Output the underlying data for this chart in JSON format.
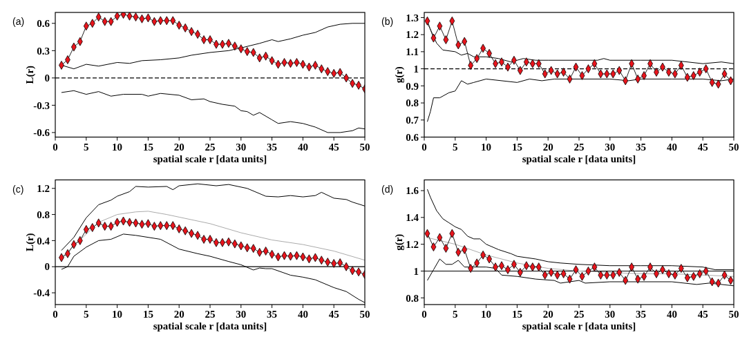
{
  "chart_data": [
    {
      "type": "line",
      "ylabel": "L(r)",
      "xlabel": "spatial scale r [data units]",
      "annotations": [
        "(a)"
      ],
      "xlim": [
        0,
        50
      ],
      "xticks": [
        0,
        5,
        10,
        15,
        20,
        25,
        30,
        35,
        40,
        45,
        50
      ],
      "ylim": [
        -0.65,
        0.72
      ],
      "yticks": [
        -0.6,
        -0.3,
        0,
        0.3,
        0.6
      ],
      "grid": false,
      "ref_lines": [
        {
          "axis": "y",
          "value": 0,
          "color": "#000000",
          "line_style": "dashed"
        }
      ],
      "series": [
        {
          "color": "#000000",
          "marker": "none",
          "x": [
            1,
            3,
            5,
            7,
            10,
            12,
            14,
            17,
            20,
            22,
            25,
            28,
            30,
            33,
            35,
            36,
            38,
            40,
            42,
            44,
            46,
            48,
            50
          ],
          "values": [
            0.14,
            0.1,
            0.15,
            0.13,
            0.17,
            0.16,
            0.19,
            0.2,
            0.22,
            0.25,
            0.28,
            0.3,
            0.33,
            0.38,
            0.42,
            0.4,
            0.43,
            0.47,
            0.5,
            0.56,
            0.59,
            0.6,
            0.6
          ]
        },
        {
          "color": "#000000",
          "marker": "none",
          "x": [
            1,
            3,
            5,
            7,
            9,
            11,
            14,
            15,
            17,
            20,
            22,
            24,
            25,
            27,
            29,
            30,
            31,
            32,
            33,
            35,
            36,
            38,
            40,
            42,
            44,
            46,
            48,
            49,
            50
          ],
          "values": [
            -0.16,
            -0.14,
            -0.18,
            -0.15,
            -0.2,
            -0.18,
            -0.18,
            -0.2,
            -0.17,
            -0.19,
            -0.24,
            -0.23,
            -0.26,
            -0.29,
            -0.31,
            -0.36,
            -0.37,
            -0.41,
            -0.38,
            -0.46,
            -0.5,
            -0.48,
            -0.5,
            -0.54,
            -0.6,
            -0.6,
            -0.58,
            -0.55,
            -0.56
          ]
        },
        {
          "color": "#e8141c",
          "marker": "diamond",
          "x": [
            1,
            2,
            3,
            4,
            5,
            6,
            7,
            8,
            9,
            10,
            11,
            12,
            13,
            14,
            15,
            16,
            17,
            18,
            19,
            20,
            21,
            22,
            23,
            24,
            25,
            26,
            27,
            28,
            29,
            30,
            31,
            32,
            33,
            34,
            35,
            36,
            37,
            38,
            39,
            40,
            41,
            42,
            43,
            44,
            45,
            46,
            47,
            48,
            49,
            50
          ],
          "values": [
            0.14,
            0.2,
            0.34,
            0.4,
            0.57,
            0.6,
            0.67,
            0.62,
            0.62,
            0.68,
            0.7,
            0.68,
            0.67,
            0.65,
            0.66,
            0.62,
            0.63,
            0.63,
            0.63,
            0.58,
            0.55,
            0.51,
            0.48,
            0.42,
            0.42,
            0.37,
            0.37,
            0.38,
            0.35,
            0.32,
            0.29,
            0.28,
            0.22,
            0.24,
            0.19,
            0.15,
            0.17,
            0.16,
            0.17,
            0.15,
            0.12,
            0.14,
            0.1,
            0.07,
            0.05,
            0.06,
            0.0,
            -0.06,
            -0.08,
            -0.12
          ]
        }
      ]
    },
    {
      "type": "line",
      "ylabel": "g(r)",
      "xlabel": "spatial scale r [data units]",
      "annotations": [
        "(b)"
      ],
      "xlim": [
        0,
        50
      ],
      "xticks": [
        0,
        5,
        10,
        15,
        20,
        25,
        30,
        35,
        40,
        45,
        50
      ],
      "ylim": [
        0.6,
        1.33
      ],
      "yticks": [
        0.6,
        0.7,
        0.8,
        0.9,
        1,
        1.1,
        1.2,
        1.3
      ],
      "grid": false,
      "ref_lines": [
        {
          "axis": "y",
          "value": 1,
          "color": "#000000",
          "line_style": "dashed"
        }
      ],
      "series": [
        {
          "color": "#000000",
          "marker": "none",
          "x": [
            0.5,
            2,
            3,
            5,
            6,
            7,
            8,
            10,
            12,
            14,
            16,
            18,
            20,
            25,
            28,
            29,
            30,
            35,
            40,
            45,
            48,
            50
          ],
          "values": [
            1.27,
            1.15,
            1.11,
            1.1,
            1.08,
            1.09,
            1.07,
            1.07,
            1.06,
            1.04,
            1.06,
            1.05,
            1.05,
            1.05,
            1.05,
            1.06,
            1.05,
            1.05,
            1.05,
            1.03,
            1.04,
            1.03
          ]
        },
        {
          "color": "#000000",
          "marker": "none",
          "x": [
            0.5,
            1,
            1.5,
            2.5,
            4,
            5,
            6,
            7,
            8,
            10,
            15,
            17,
            19,
            21,
            25,
            30,
            33,
            35,
            40,
            45,
            48,
            50
          ],
          "values": [
            0.69,
            0.75,
            0.83,
            0.83,
            0.86,
            0.87,
            0.93,
            0.91,
            0.92,
            0.94,
            0.92,
            0.94,
            0.93,
            0.94,
            0.94,
            0.94,
            0.93,
            0.94,
            0.94,
            0.94,
            0.93,
            0.94
          ]
        },
        {
          "color": "#e8141c",
          "marker": "diamond",
          "x": [
            0.5,
            1.5,
            2.5,
            3.5,
            4.5,
            5.5,
            6.5,
            7.5,
            8.5,
            9.5,
            10.5,
            11.5,
            12.5,
            13.5,
            14.5,
            15.5,
            16.5,
            17.5,
            18.5,
            19.5,
            20.5,
            21.5,
            22.5,
            23.5,
            24.5,
            25.5,
            26.5,
            27.5,
            28.5,
            29.5,
            30.5,
            31.5,
            32.5,
            33.5,
            34.5,
            35.5,
            36.5,
            37.5,
            38.5,
            39.5,
            40.5,
            41.5,
            42.5,
            43.5,
            44.5,
            45.5,
            46.5,
            47.5,
            48.5,
            49.5
          ],
          "values": [
            1.28,
            1.18,
            1.25,
            1.17,
            1.28,
            1.14,
            1.16,
            1.02,
            1.06,
            1.12,
            1.09,
            1.03,
            1.04,
            1.01,
            1.05,
            0.99,
            1.04,
            1.03,
            1.03,
            0.97,
            0.99,
            0.97,
            0.98,
            0.94,
            1.01,
            0.96,
            1.0,
            1.03,
            0.97,
            0.97,
            0.97,
            0.99,
            0.93,
            1.03,
            0.94,
            0.96,
            1.03,
            0.98,
            1.01,
            0.98,
            0.97,
            1.02,
            0.95,
            0.96,
            0.98,
            1.0,
            0.92,
            0.91,
            0.97,
            0.93
          ]
        }
      ]
    },
    {
      "type": "line",
      "ylabel": "L(r)",
      "xlabel": "spatial scale r [data units]",
      "annotations": [
        "(c)"
      ],
      "xlim": [
        0,
        50
      ],
      "xticks": [
        0,
        5,
        10,
        15,
        20,
        25,
        30,
        35,
        40,
        45,
        50
      ],
      "ylim": [
        -0.58,
        1.33
      ],
      "yticks": [
        -0.4,
        0,
        0.4,
        0.8,
        1.2
      ],
      "grid": false,
      "ref_lines": [
        {
          "axis": "y",
          "value": 0,
          "color": "#000000",
          "line_style": "solid"
        }
      ],
      "series": [
        {
          "color": "#000000",
          "marker": "none",
          "x": [
            1,
            3,
            5,
            7,
            9,
            10,
            12,
            13,
            15,
            18,
            19,
            20,
            23,
            26,
            28,
            31,
            34,
            36,
            38,
            40,
            42,
            43,
            45,
            47,
            48,
            50
          ],
          "values": [
            0.25,
            0.45,
            0.75,
            0.95,
            1.02,
            1.08,
            1.15,
            1.23,
            1.22,
            1.23,
            1.18,
            1.24,
            1.27,
            1.24,
            1.26,
            1.2,
            1.08,
            1.07,
            1.09,
            1.07,
            1.09,
            1.14,
            1.05,
            1.03,
            0.99,
            0.93
          ]
        },
        {
          "color": "#aaaaaa",
          "marker": "none",
          "x": [
            1,
            5,
            7,
            10,
            13,
            15,
            18,
            20,
            25,
            30,
            35,
            40,
            45,
            50
          ],
          "values": [
            0.14,
            0.5,
            0.68,
            0.8,
            0.84,
            0.85,
            0.8,
            0.76,
            0.66,
            0.52,
            0.41,
            0.34,
            0.24,
            0.1
          ]
        },
        {
          "color": "#000000",
          "marker": "none",
          "x": [
            1,
            2,
            3,
            5,
            7,
            9,
            11,
            13,
            17,
            20,
            23,
            25,
            28,
            30,
            32,
            33,
            34,
            35,
            38,
            40,
            42,
            45,
            47,
            49,
            50
          ],
          "values": [
            -0.04,
            0,
            0.16,
            0.3,
            0.4,
            0.42,
            0.5,
            0.48,
            0.42,
            0.27,
            0.2,
            0.16,
            0.08,
            0.03,
            -0.05,
            -0.02,
            -0.03,
            -0.03,
            -0.13,
            -0.16,
            -0.2,
            -0.32,
            -0.38,
            -0.5,
            -0.55
          ]
        },
        {
          "color": "#e8141c",
          "marker": "diamond",
          "x": [
            1,
            2,
            3,
            4,
            5,
            6,
            7,
            8,
            9,
            10,
            11,
            12,
            13,
            14,
            15,
            16,
            17,
            18,
            19,
            20,
            21,
            22,
            23,
            24,
            25,
            26,
            27,
            28,
            29,
            30,
            31,
            32,
            33,
            34,
            35,
            36,
            37,
            38,
            39,
            40,
            41,
            42,
            43,
            44,
            45,
            46,
            47,
            48,
            49,
            50
          ],
          "values": [
            0.14,
            0.2,
            0.34,
            0.4,
            0.57,
            0.6,
            0.67,
            0.62,
            0.62,
            0.68,
            0.7,
            0.68,
            0.67,
            0.65,
            0.66,
            0.62,
            0.63,
            0.63,
            0.63,
            0.58,
            0.55,
            0.51,
            0.48,
            0.42,
            0.42,
            0.37,
            0.37,
            0.38,
            0.35,
            0.32,
            0.29,
            0.28,
            0.22,
            0.24,
            0.19,
            0.15,
            0.17,
            0.16,
            0.17,
            0.15,
            0.12,
            0.14,
            0.1,
            0.07,
            0.05,
            0.06,
            0.0,
            -0.06,
            -0.08,
            -0.12
          ]
        }
      ]
    },
    {
      "type": "line",
      "ylabel": "g(r)",
      "xlabel": "spatial scale r [data units]",
      "annotations": [
        "(d)"
      ],
      "xlim": [
        0,
        50
      ],
      "xticks": [
        0,
        5,
        10,
        15,
        20,
        25,
        30,
        35,
        40,
        45,
        50
      ],
      "ylim": [
        0.75,
        1.68
      ],
      "yticks": [
        0.8,
        1,
        1.2,
        1.4,
        1.6
      ],
      "grid": false,
      "ref_lines": [
        {
          "axis": "y",
          "value": 1,
          "color": "#000000",
          "line_style": "solid"
        }
      ],
      "series": [
        {
          "color": "#000000",
          "marker": "none",
          "x": [
            0.5,
            1,
            2,
            3,
            4,
            5,
            6,
            7,
            8,
            9,
            10,
            12,
            14,
            15,
            18,
            20,
            22,
            25,
            30,
            35,
            40,
            45,
            47,
            50
          ],
          "values": [
            1.61,
            1.55,
            1.45,
            1.39,
            1.36,
            1.33,
            1.31,
            1.26,
            1.24,
            1.24,
            1.2,
            1.16,
            1.13,
            1.11,
            1.09,
            1.07,
            1.06,
            1.05,
            1.04,
            1.04,
            1.04,
            1.03,
            1.01,
            1.01
          ]
        },
        {
          "color": "#000000",
          "marker": "none",
          "x": [
            0.5,
            1.5,
            2.5,
            3.5,
            4.5,
            5.5,
            6.5,
            8,
            10,
            11.5,
            12.5,
            15,
            18,
            21,
            22,
            25,
            26,
            30,
            35,
            40,
            44,
            46,
            48,
            50
          ],
          "values": [
            0.93,
            1.01,
            1.09,
            1.05,
            1.05,
            1.08,
            1.03,
            1.03,
            1.03,
            1.02,
            0.97,
            0.96,
            0.94,
            0.93,
            0.91,
            0.93,
            0.91,
            0.92,
            0.92,
            0.92,
            0.9,
            0.91,
            0.9,
            0.89
          ]
        },
        {
          "color": "#aaaaaa",
          "marker": "none",
          "x": [
            0.5,
            5,
            10,
            15,
            20,
            25,
            30,
            35,
            40,
            45,
            50
          ],
          "values": [
            1.25,
            1.2,
            1.12,
            1.06,
            1.02,
            1.0,
            0.99,
            0.98,
            0.98,
            0.97,
            0.96
          ]
        },
        {
          "color": "#e8141c",
          "marker": "diamond",
          "x": [
            0.5,
            1.5,
            2.5,
            3.5,
            4.5,
            5.5,
            6.5,
            7.5,
            8.5,
            9.5,
            10.5,
            11.5,
            12.5,
            13.5,
            14.5,
            15.5,
            16.5,
            17.5,
            18.5,
            19.5,
            20.5,
            21.5,
            22.5,
            23.5,
            24.5,
            25.5,
            26.5,
            27.5,
            28.5,
            29.5,
            30.5,
            31.5,
            32.5,
            33.5,
            34.5,
            35.5,
            36.5,
            37.5,
            38.5,
            39.5,
            40.5,
            41.5,
            42.5,
            43.5,
            44.5,
            45.5,
            46.5,
            47.5,
            48.5,
            49.5
          ],
          "values": [
            1.28,
            1.18,
            1.25,
            1.17,
            1.28,
            1.14,
            1.16,
            1.02,
            1.06,
            1.12,
            1.09,
            1.03,
            1.04,
            1.01,
            1.05,
            0.99,
            1.04,
            1.03,
            1.03,
            0.97,
            0.99,
            0.97,
            0.98,
            0.94,
            1.01,
            0.96,
            1.0,
            1.03,
            0.97,
            0.97,
            0.97,
            0.99,
            0.93,
            1.03,
            0.94,
            0.96,
            1.03,
            0.98,
            1.01,
            0.98,
            0.97,
            1.02,
            0.95,
            0.96,
            0.98,
            1.0,
            0.92,
            0.91,
            0.97,
            0.93
          ]
        }
      ]
    }
  ]
}
